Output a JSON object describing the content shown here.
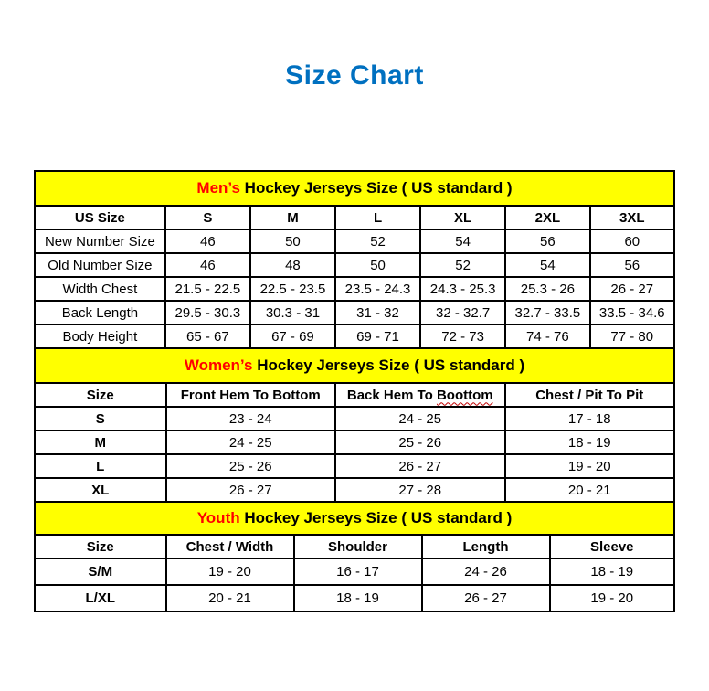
{
  "page": {
    "title": "Size Chart"
  },
  "colors": {
    "title_blue": "#0070C0",
    "band_yellow": "#FFFF00",
    "accent_red": "#FF0000"
  },
  "tables": [
    {
      "id": "mens",
      "band": {
        "accent": "Men’s",
        "rest": " Hockey Jerseys Size ( US standard )"
      },
      "bold_first_col": false,
      "columns": [
        "US Size",
        "S",
        "M",
        "L",
        "XL",
        "2XL",
        "3XL"
      ],
      "rows": [
        [
          "New Number Size",
          "46",
          "50",
          "52",
          "54",
          "56",
          "60"
        ],
        [
          "Old Number Size",
          "46",
          "48",
          "50",
          "52",
          "54",
          "56"
        ],
        [
          "Width Chest",
          "21.5 - 22.5",
          "22.5 - 23.5",
          "23.5 - 24.3",
          "24.3 - 25.3",
          "25.3 - 26",
          "26 - 27"
        ],
        [
          "Back Length",
          "29.5 - 30.3",
          "30.3 - 31",
          "31 - 32",
          "32 - 32.7",
          "32.7 - 33.5",
          "33.5 - 34.6"
        ],
        [
          "Body Height",
          "65 - 67",
          "67 - 69",
          "69 - 71",
          "72 - 73",
          "74 - 76",
          "77 - 80"
        ]
      ]
    },
    {
      "id": "womens",
      "band": {
        "accent": "Women’s",
        "rest": " Hockey Jerseys Size ( US standard )"
      },
      "bold_first_col": true,
      "columns": [
        "Size",
        "Front Hem To Bottom",
        "Back Hem To Boottom",
        "Chest / Pit To Pit"
      ],
      "squiggle": {
        "col": 2,
        "word": "Boottom"
      },
      "rows": [
        [
          "S",
          "23 - 24",
          "24 - 25",
          "17 - 18"
        ],
        [
          "M",
          "24 - 25",
          "25 - 26",
          "18 - 19"
        ],
        [
          "L",
          "25 - 26",
          "26 - 27",
          "19 - 20"
        ],
        [
          "XL",
          "26 - 27",
          "27 - 28",
          "20 - 21"
        ]
      ]
    },
    {
      "id": "youth",
      "band": {
        "accent": "Youth",
        "rest": " Hockey Jerseys Size ( US standard )"
      },
      "bold_first_col": true,
      "columns": [
        "Size",
        "Chest / Width",
        "Shoulder",
        "Length",
        "Sleeve"
      ],
      "rows": [
        [
          "S/M",
          "19 - 20",
          "16 - 17",
          "24 - 26",
          "18 - 19"
        ],
        [
          "L/XL",
          "20 - 21",
          "18 - 19",
          "26 - 27",
          "19 - 20"
        ]
      ]
    }
  ]
}
